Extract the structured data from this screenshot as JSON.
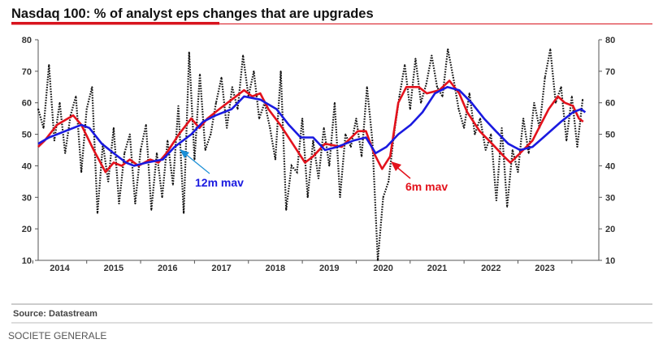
{
  "header": {
    "title": "Nasdaq 100: % of analyst eps changes that are upgrades"
  },
  "footer": {
    "source": "Source: Datastream",
    "brand": "SOCIETE GENERALE"
  },
  "colors": {
    "accent": "#d8141e",
    "red_series": "#e3121c",
    "blue_series": "#1a1ae0",
    "raw": "#111111"
  },
  "chart_data": {
    "type": "line",
    "title": "Nasdaq 100: % of analyst eps changes that are upgrades",
    "xlabel": "",
    "ylabel": "",
    "xlim": [
      2013.6,
      2024.0
    ],
    "ylim": [
      10,
      80
    ],
    "yticks": [
      10,
      20,
      30,
      40,
      50,
      60,
      70,
      80
    ],
    "xticks": [
      2014,
      2015,
      2016,
      2017,
      2018,
      2019,
      2020,
      2021,
      2022,
      2023
    ],
    "grid": false,
    "annotations": [
      {
        "text": "12m mav",
        "series": "12m mav"
      },
      {
        "text": "6m mav",
        "series": "6m mav"
      }
    ],
    "series": [
      {
        "name": "raw",
        "style": "dotted",
        "start": 2013.6,
        "step": 0.1,
        "values": [
          58,
          52,
          72,
          48,
          60,
          44,
          56,
          62,
          38,
          58,
          65,
          25,
          47,
          35,
          52,
          28,
          44,
          50,
          28,
          45,
          53,
          26,
          44,
          30,
          48,
          34,
          59,
          25,
          76,
          42,
          69,
          45,
          50,
          60,
          68,
          52,
          65,
          58,
          75,
          62,
          70,
          55,
          60,
          52,
          42,
          70,
          26,
          40,
          38,
          55,
          30,
          48,
          36,
          52,
          40,
          60,
          30,
          50,
          46,
          55,
          43,
          65,
          48,
          10,
          30,
          35,
          50,
          62,
          72,
          58,
          74,
          60,
          66,
          75,
          65,
          62,
          77,
          68,
          58,
          52,
          63,
          50,
          55,
          45,
          50,
          29,
          52,
          27,
          45,
          38,
          55,
          44,
          60,
          52,
          68,
          77,
          60,
          65,
          48,
          62,
          46,
          61
        ]
      },
      {
        "name": "6m mav",
        "points": [
          [
            2013.6,
            46
          ],
          [
            2013.72,
            48
          ],
          [
            2013.95,
            53
          ],
          [
            2014.25,
            56
          ],
          [
            2014.4,
            53
          ],
          [
            2014.63,
            45
          ],
          [
            2014.85,
            38
          ],
          [
            2015.0,
            41
          ],
          [
            2015.15,
            40
          ],
          [
            2015.3,
            42
          ],
          [
            2015.46,
            40
          ],
          [
            2015.68,
            42
          ],
          [
            2015.83,
            41
          ],
          [
            2015.98,
            44
          ],
          [
            2016.21,
            50
          ],
          [
            2016.44,
            55
          ],
          [
            2016.59,
            52
          ],
          [
            2016.74,
            55
          ],
          [
            2016.96,
            58
          ],
          [
            2017.19,
            61
          ],
          [
            2017.42,
            64
          ],
          [
            2017.57,
            62
          ],
          [
            2017.72,
            63
          ],
          [
            2017.87,
            58
          ],
          [
            2018.09,
            53
          ],
          [
            2018.32,
            47
          ],
          [
            2018.55,
            41
          ],
          [
            2018.7,
            43
          ],
          [
            2018.92,
            47
          ],
          [
            2019.23,
            46
          ],
          [
            2019.53,
            51
          ],
          [
            2019.68,
            51
          ],
          [
            2019.83,
            44
          ],
          [
            2019.98,
            39
          ],
          [
            2020.13,
            43
          ],
          [
            2020.28,
            60
          ],
          [
            2020.43,
            65
          ],
          [
            2020.66,
            65
          ],
          [
            2020.81,
            63
          ],
          [
            2021.04,
            64
          ],
          [
            2021.23,
            67
          ],
          [
            2021.41,
            63
          ],
          [
            2021.56,
            57
          ],
          [
            2021.79,
            51
          ],
          [
            2022.02,
            47
          ],
          [
            2022.24,
            43
          ],
          [
            2022.36,
            41
          ],
          [
            2022.54,
            44
          ],
          [
            2022.77,
            48
          ],
          [
            2022.92,
            53
          ],
          [
            2023.07,
            58
          ],
          [
            2023.24,
            62
          ],
          [
            2023.37,
            60
          ],
          [
            2023.52,
            59
          ],
          [
            2023.63,
            55
          ],
          [
            2023.71,
            54
          ]
        ]
      },
      {
        "name": "12m mav",
        "points": [
          [
            2013.6,
            47
          ],
          [
            2013.8,
            49
          ],
          [
            2014.1,
            51
          ],
          [
            2014.4,
            53
          ],
          [
            2014.55,
            52
          ],
          [
            2014.78,
            47
          ],
          [
            2015.0,
            44
          ],
          [
            2015.23,
            41
          ],
          [
            2015.38,
            40
          ],
          [
            2015.61,
            41
          ],
          [
            2015.91,
            42
          ],
          [
            2016.13,
            46
          ],
          [
            2016.44,
            50
          ],
          [
            2016.66,
            54
          ],
          [
            2016.89,
            56
          ],
          [
            2017.19,
            58
          ],
          [
            2017.42,
            62
          ],
          [
            2017.72,
            61
          ],
          [
            2018.02,
            58
          ],
          [
            2018.25,
            53
          ],
          [
            2018.47,
            49
          ],
          [
            2018.7,
            49
          ],
          [
            2018.92,
            45
          ],
          [
            2019.15,
            46
          ],
          [
            2019.45,
            48
          ],
          [
            2019.68,
            49
          ],
          [
            2019.86,
            44
          ],
          [
            2020.06,
            46
          ],
          [
            2020.28,
            50
          ],
          [
            2020.51,
            53
          ],
          [
            2020.73,
            57
          ],
          [
            2020.96,
            63
          ],
          [
            2021.19,
            65
          ],
          [
            2021.41,
            64
          ],
          [
            2021.64,
            60
          ],
          [
            2021.87,
            55
          ],
          [
            2022.09,
            51
          ],
          [
            2022.32,
            47
          ],
          [
            2022.54,
            45
          ],
          [
            2022.77,
            46
          ],
          [
            2022.97,
            49
          ],
          [
            2023.3,
            54
          ],
          [
            2023.52,
            57
          ],
          [
            2023.67,
            58
          ],
          [
            2023.75,
            57
          ]
        ]
      }
    ]
  }
}
